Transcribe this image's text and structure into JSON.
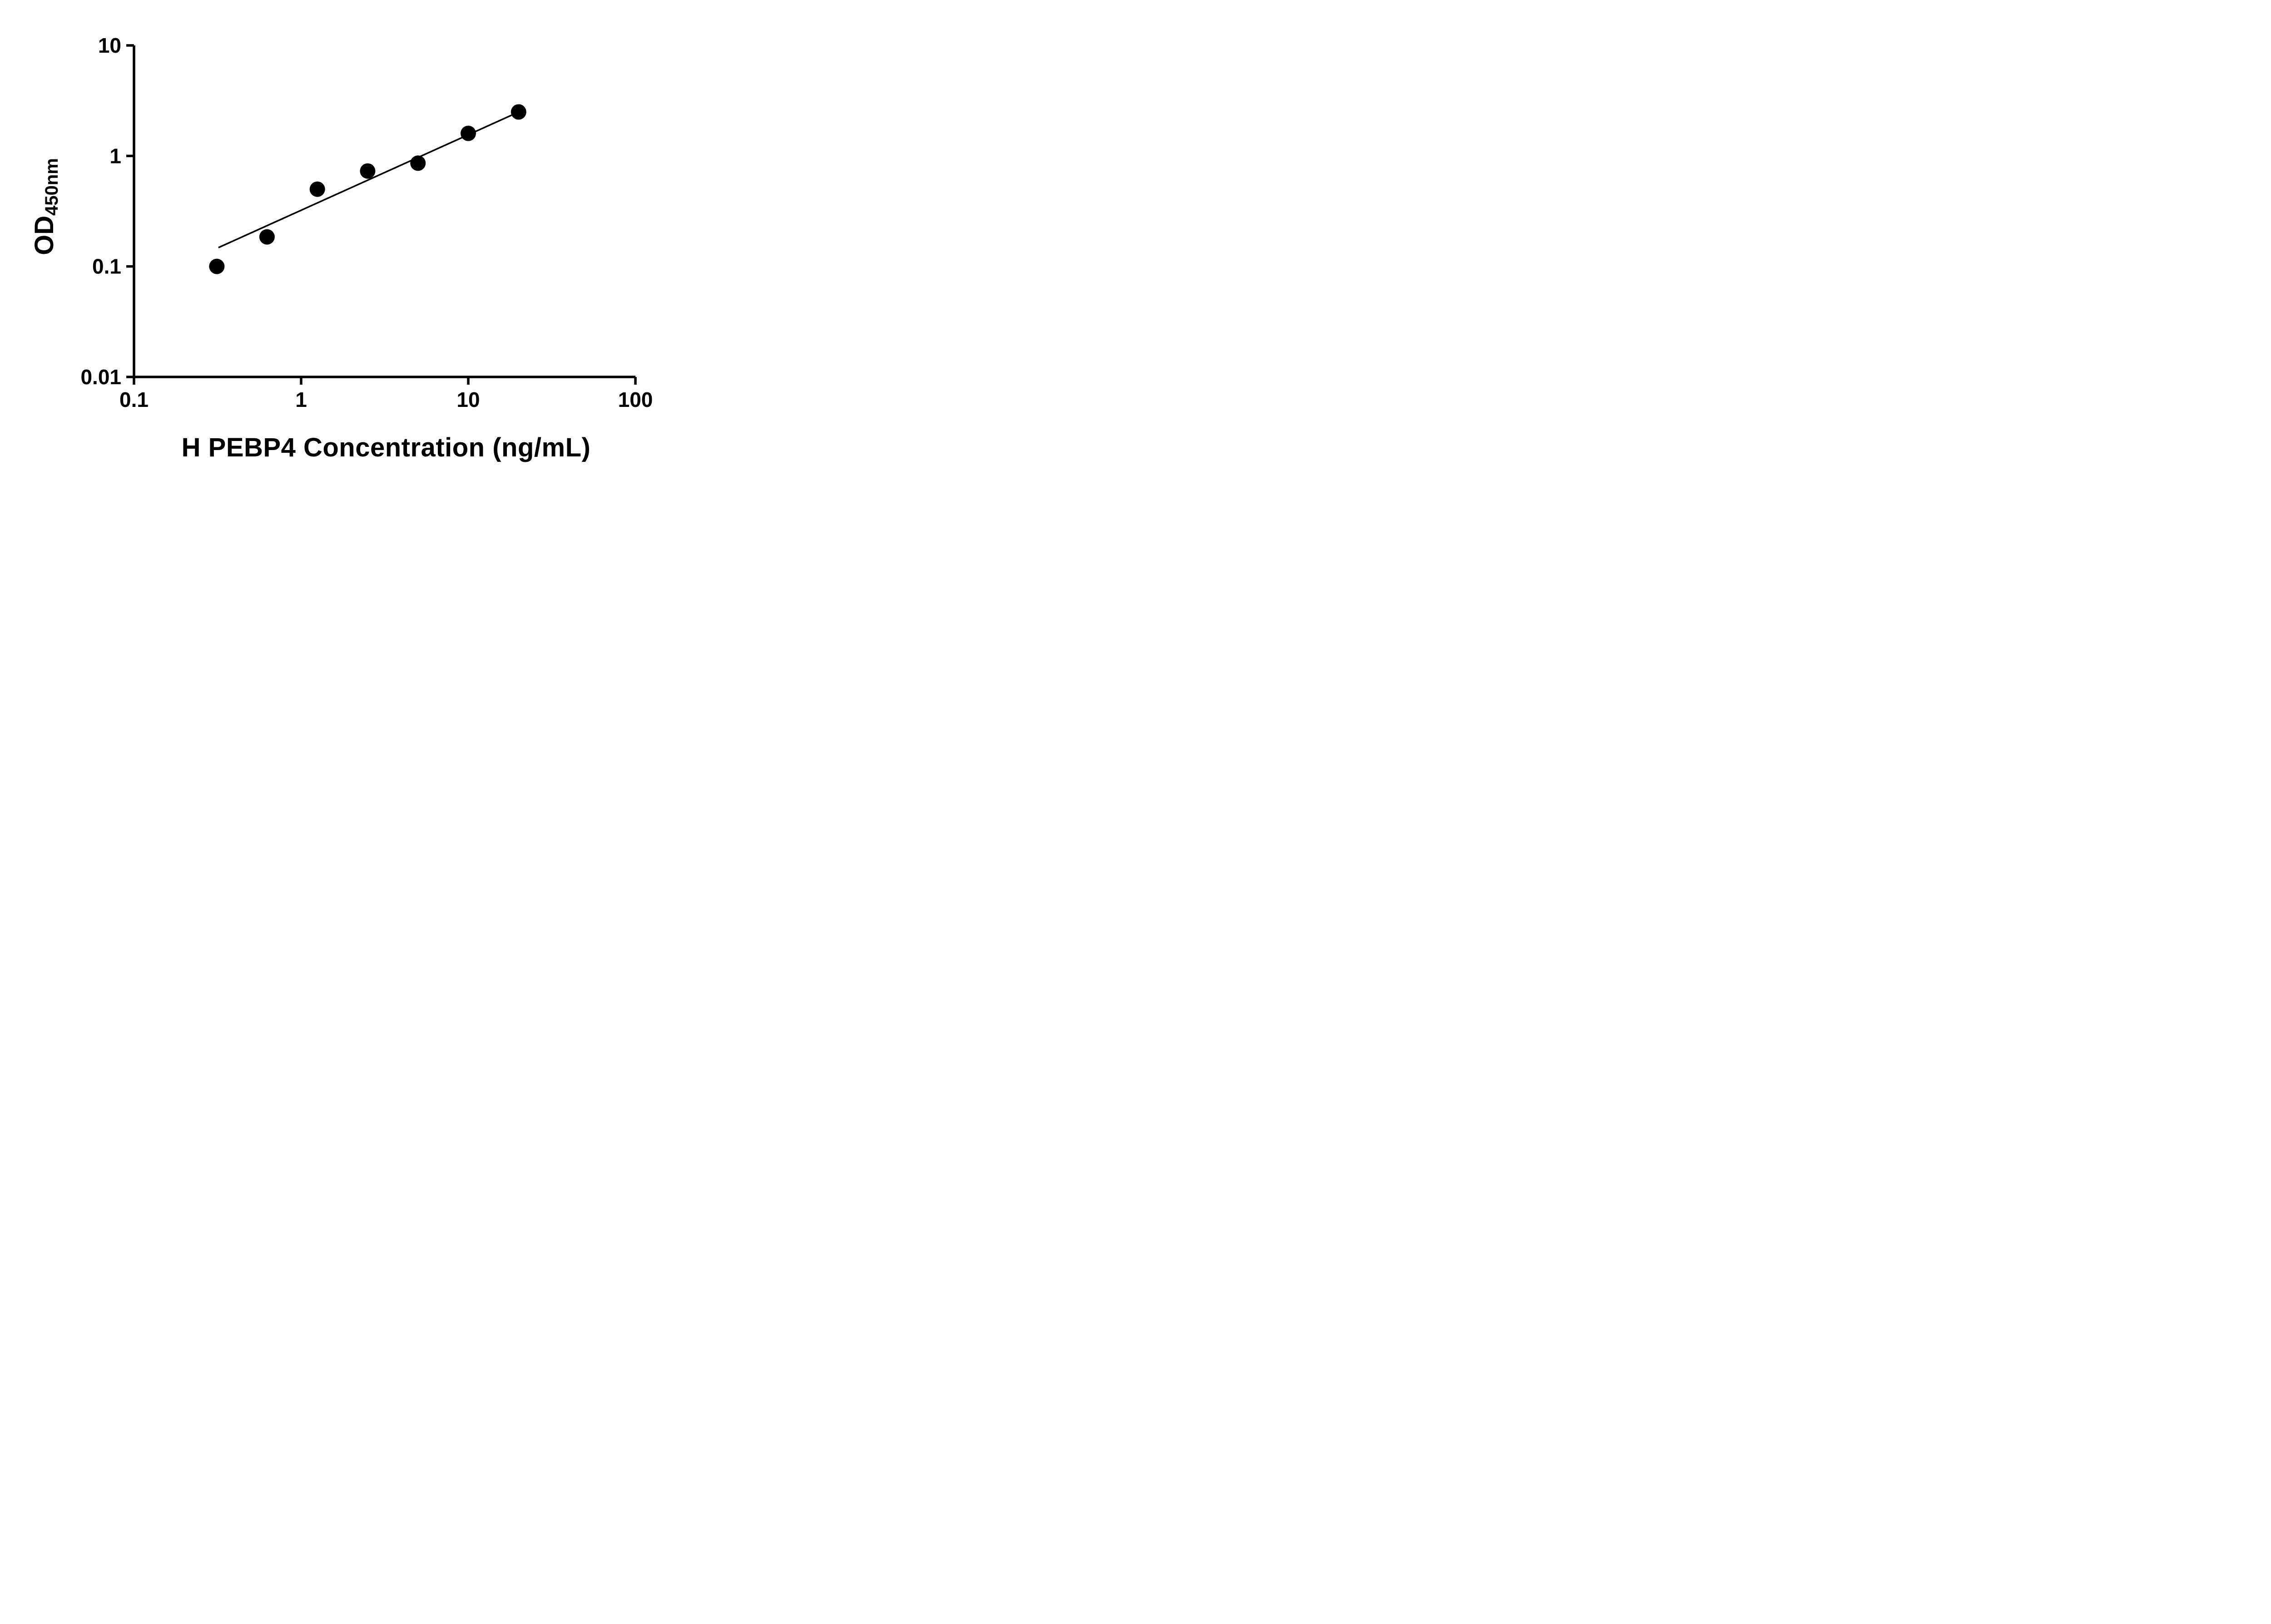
{
  "chart_data": {
    "type": "scatter",
    "title": "",
    "xlabel": "H PEBP4 Concentration (ng/mL)",
    "ylabel": "OD",
    "ylabel_subscript": "450nm",
    "x_scale": "log",
    "y_scale": "log",
    "xlim": [
      0.1,
      100
    ],
    "ylim": [
      0.01,
      10
    ],
    "x_ticks": [
      "0.1",
      "1",
      "10",
      "100"
    ],
    "y_ticks": [
      "0.01",
      "0.1",
      "1",
      "10"
    ],
    "grid": false,
    "legend": false,
    "background_color": "#ffffff",
    "axis_color": "#000000",
    "marker_color": "#000000",
    "line_color": "#000000",
    "points": [
      {
        "x": 0.313,
        "y": 0.1
      },
      {
        "x": 0.625,
        "y": 0.185
      },
      {
        "x": 1.25,
        "y": 0.5
      },
      {
        "x": 2.5,
        "y": 0.73
      },
      {
        "x": 5.0,
        "y": 0.86
      },
      {
        "x": 10.0,
        "y": 1.6
      },
      {
        "x": 20.0,
        "y": 2.5
      }
    ],
    "trend_line": {
      "x1": 0.32,
      "y1": 0.148,
      "x2": 20.4,
      "y2": 2.53
    }
  }
}
